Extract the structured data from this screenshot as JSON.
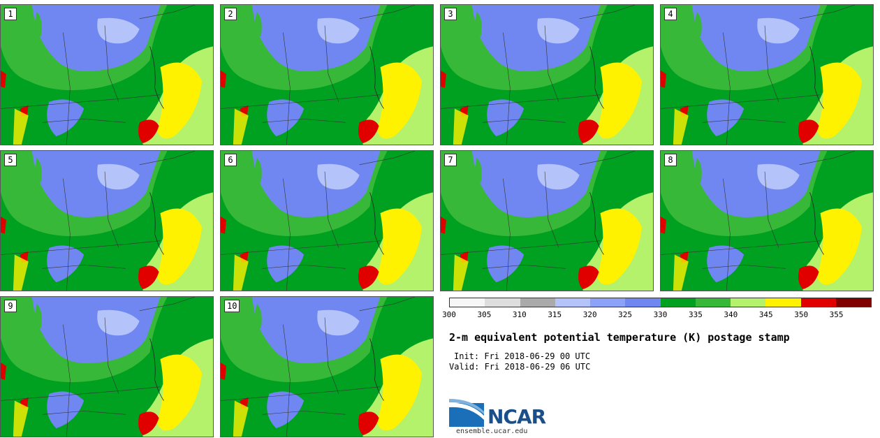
{
  "panels": [
    {
      "label": "1"
    },
    {
      "label": "2"
    },
    {
      "label": "3"
    },
    {
      "label": "4"
    },
    {
      "label": "5"
    },
    {
      "label": "6"
    },
    {
      "label": "7"
    },
    {
      "label": "8"
    },
    {
      "label": "9"
    },
    {
      "label": "10"
    }
  ],
  "colorbar": {
    "colors": [
      "#f6f6f6",
      "#dedede",
      "#aaaaaa",
      "#b4c4fa",
      "#8ba2f8",
      "#7087f2",
      "#00a020",
      "#38b838",
      "#b3f26a",
      "#fff200",
      "#e00000",
      "#800000"
    ],
    "ticks": [
      "300",
      "305",
      "310",
      "315",
      "320",
      "325",
      "330",
      "335",
      "340",
      "345",
      "350",
      "355"
    ]
  },
  "title": "2-m equivalent potential temperature (K) postage stamp",
  "init": "Init: Fri 2018-06-29 00 UTC",
  "valid": "Valid: Fri 2018-06-29 06 UTC",
  "logo_text": "NCAR",
  "site": "ensemble.ucar.edu"
}
